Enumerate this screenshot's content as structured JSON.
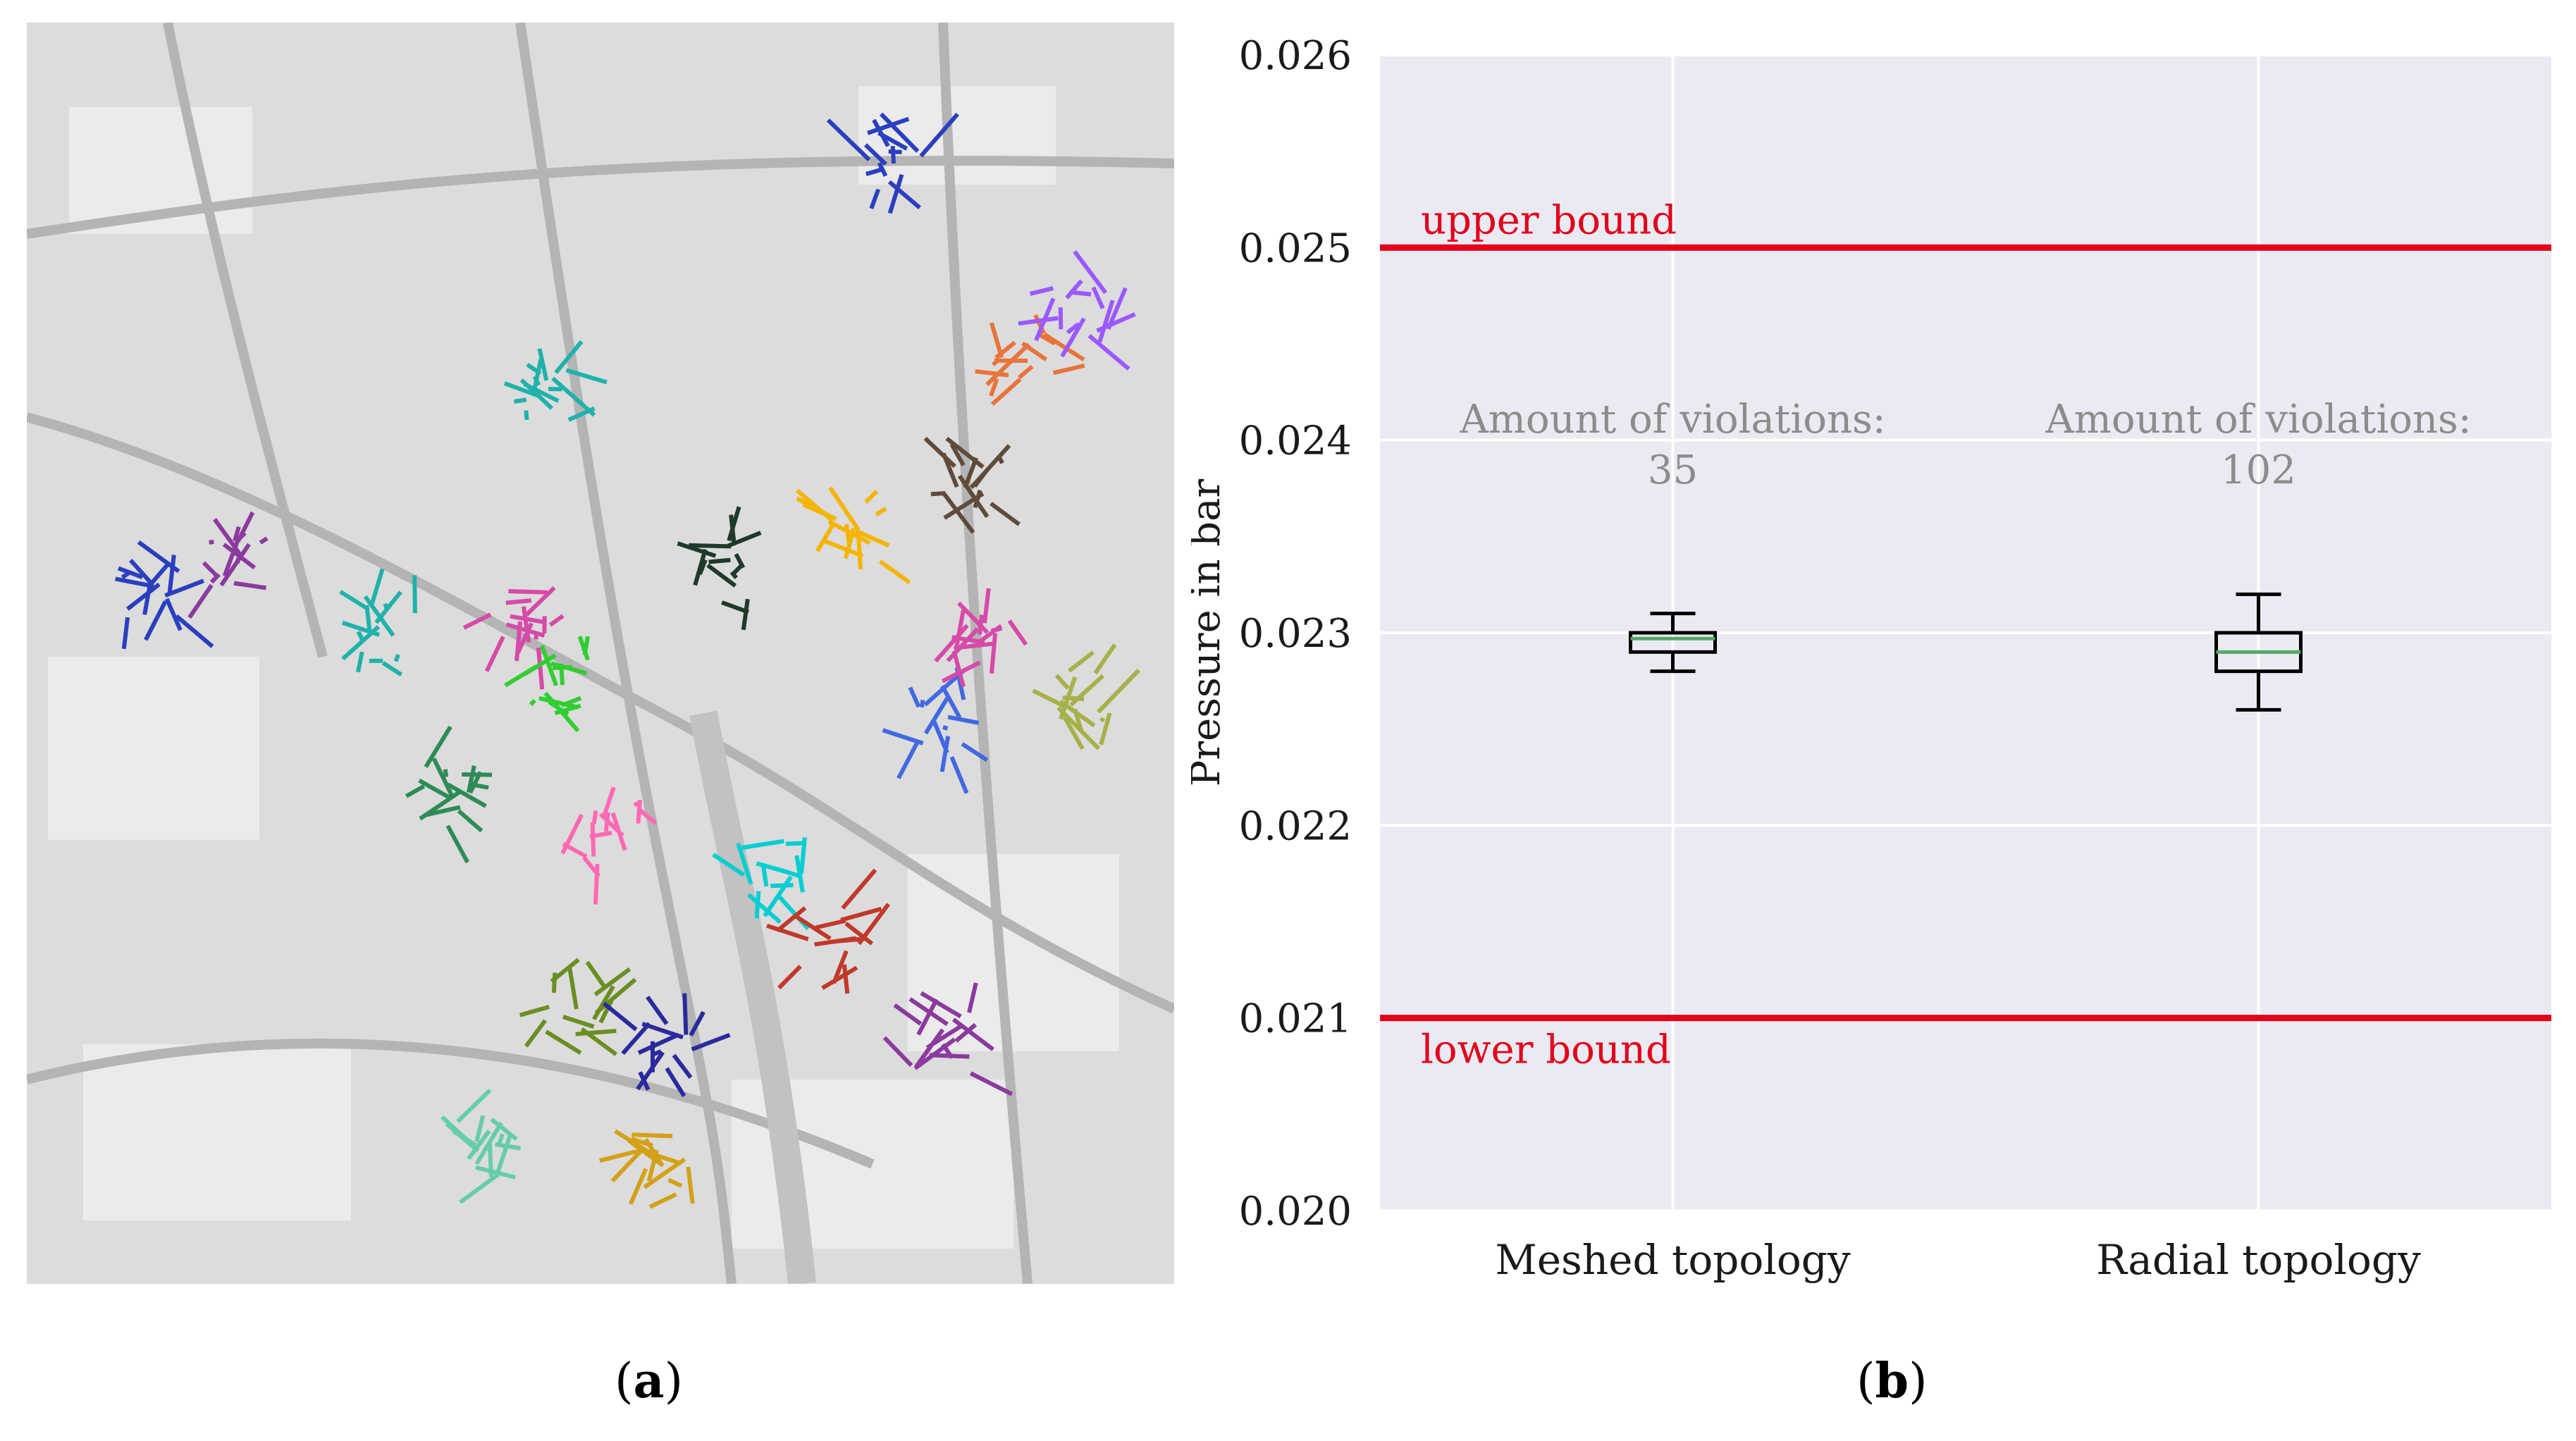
{
  "panels": {
    "a": {
      "open": "(",
      "letter": "a",
      "close": ")"
    },
    "b": {
      "open": "(",
      "letter": "b",
      "close": ")"
    }
  },
  "map": {
    "icon": "city-map-gas-network-icon",
    "background_color": "#dcdcdc",
    "network_colors": [
      "#8b3a9e",
      "#2a3fbf",
      "#20b2aa",
      "#d64aa8",
      "#32cd32",
      "#1f3a2a",
      "#f4b400",
      "#e8743b",
      "#9b59ff",
      "#5f4b3a",
      "#a8b04a",
      "#4169e1",
      "#2e8b57",
      "#ff69b4",
      "#00ced1",
      "#c0392b",
      "#6b8e23",
      "#2a2a9e",
      "#66cdaa",
      "#d4a017"
    ]
  },
  "chart_data": {
    "type": "box",
    "categories": [
      "Meshed topology",
      "Radial topology"
    ],
    "ylabel": "Pressure in bar",
    "xlabel": "",
    "ylim": [
      0.02,
      0.026
    ],
    "yticks": [
      "0.020",
      "0.021",
      "0.022",
      "0.023",
      "0.024",
      "0.025",
      "0.026"
    ],
    "grid": true,
    "background": "#eaeaf2",
    "boxes": [
      {
        "category": "Meshed topology",
        "whisker_low": 0.0228,
        "q1": 0.0229,
        "median": 0.02297,
        "q3": 0.023,
        "whisker_high": 0.0231,
        "annotation_title": "Amount of violations:",
        "annotation_value": "35"
      },
      {
        "category": "Radial topology",
        "whisker_low": 0.0226,
        "q1": 0.0228,
        "median": 0.0229,
        "q3": 0.023,
        "whisker_high": 0.0232,
        "annotation_title": "Amount of violations:",
        "annotation_value": "102"
      }
    ],
    "reference_lines": [
      {
        "label": "upper bound",
        "value": 0.025,
        "color": "#e3001b"
      },
      {
        "label": "lower bound",
        "value": 0.021,
        "color": "#e3001b"
      }
    ],
    "box_color": "#000000",
    "median_color": "#55a868",
    "annotation_color": "#8c8c8c"
  }
}
